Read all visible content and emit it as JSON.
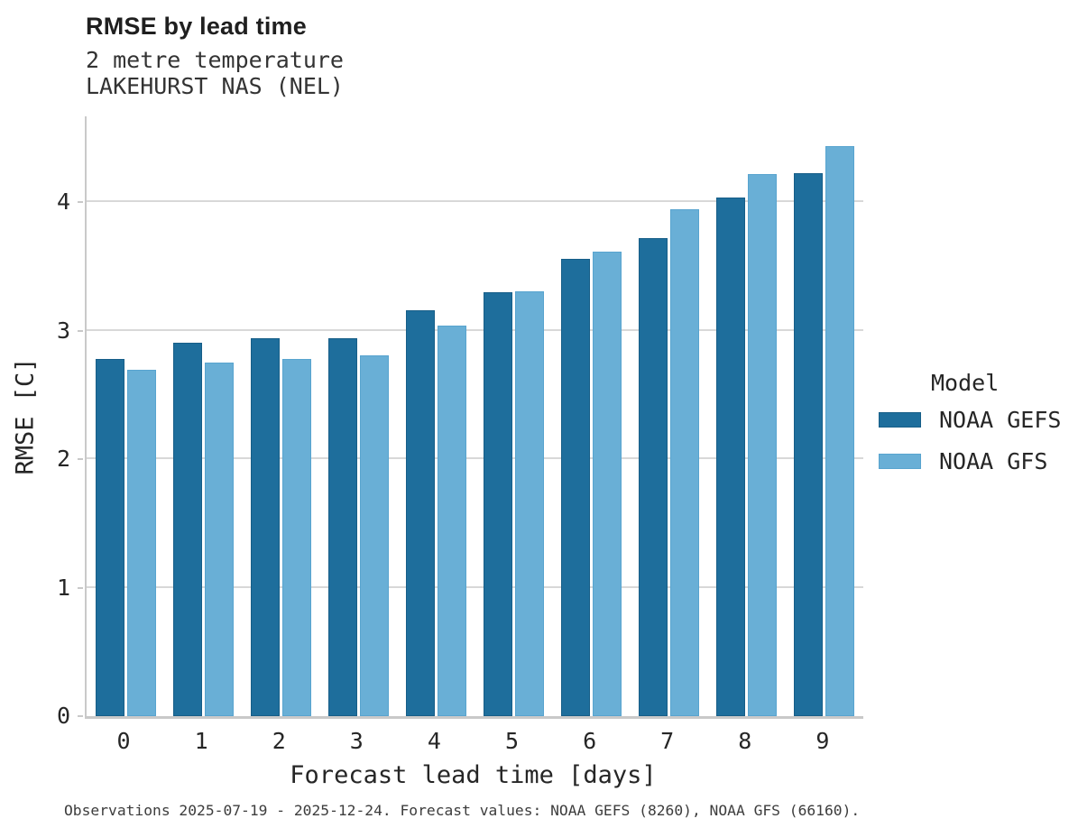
{
  "title": "RMSE by lead time",
  "subtitle1": "2 metre temperature",
  "subtitle2": "LAKEHURST NAS (NEL)",
  "caption": "Observations 2025-07-19 - 2025-12-24. Forecast values: NOAA GEFS (8260), NOAA GFS (66160).",
  "colors": {
    "grid": "#d8d8d8",
    "spine": "#c9c9c9",
    "text": "#262626",
    "caption_text": "#3d3d3d"
  },
  "chart_data": {
    "type": "bar",
    "title": "RMSE by lead time",
    "subtitle": "2 metre temperature — LAKEHURST NAS (NEL)",
    "categories": [
      "0",
      "1",
      "2",
      "3",
      "4",
      "5",
      "6",
      "7",
      "8",
      "9"
    ],
    "series": [
      {
        "name": "NOAA GEFS",
        "color": "#1e6e9c",
        "edge_color": "#175e88",
        "values": [
          2.78,
          2.91,
          2.94,
          2.94,
          3.16,
          3.3,
          3.56,
          3.72,
          4.04,
          4.23
        ]
      },
      {
        "name": "NOAA GFS",
        "color": "#69afd6",
        "edge_color": "#58a4cf",
        "values": [
          2.7,
          2.75,
          2.78,
          2.81,
          3.04,
          3.31,
          3.62,
          3.95,
          4.22,
          4.44
        ]
      }
    ],
    "xlabel": "Forecast lead time [days]",
    "ylabel": "RMSE [C]",
    "ylim": [
      0,
      4.67
    ],
    "yticks": [
      0,
      1,
      2,
      3,
      4
    ],
    "grid": "horizontal",
    "legend_title": "Model",
    "legend_position": "right of plot"
  }
}
